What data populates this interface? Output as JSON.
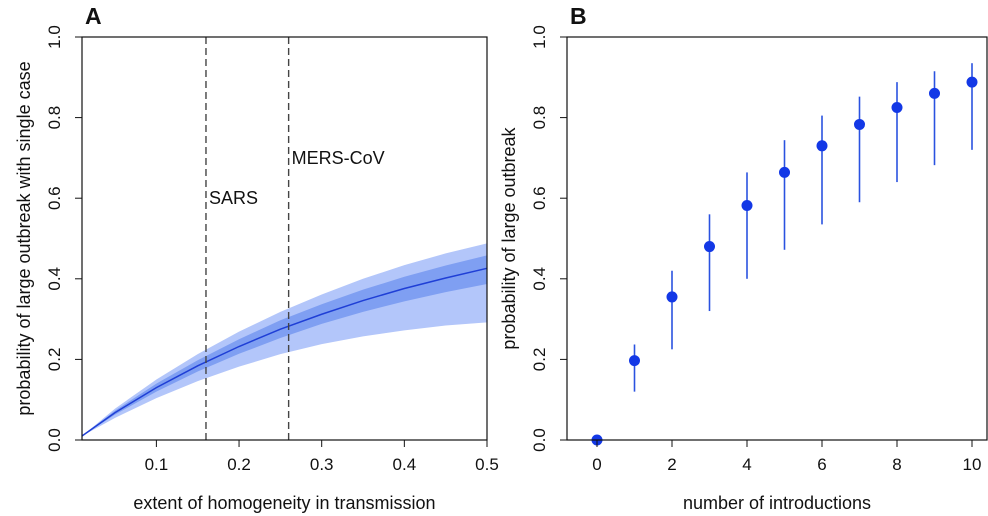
{
  "chart_data": [
    {
      "type": "line",
      "panel_label": "A",
      "xlabel": "extent of homogeneity in transmission",
      "ylabel": "probability of large outbreak with single case",
      "xlim": [
        0.01,
        0.5
      ],
      "ylim": [
        0,
        1
      ],
      "xticks": [
        "0.1",
        "0.2",
        "0.3",
        "0.4",
        "0.5"
      ],
      "xtick_values": [
        0.1,
        0.2,
        0.3,
        0.4,
        0.5
      ],
      "yticks": [
        "0.0",
        "0.2",
        "0.4",
        "0.6",
        "0.8",
        "1.0"
      ],
      "ytick_values": [
        0,
        0.2,
        0.4,
        0.6,
        0.8,
        1.0
      ],
      "grid": false,
      "x": [
        0.01,
        0.05,
        0.1,
        0.15,
        0.2,
        0.25,
        0.3,
        0.35,
        0.4,
        0.45,
        0.5
      ],
      "median": [
        0.01,
        0.068,
        0.13,
        0.184,
        0.232,
        0.275,
        0.312,
        0.346,
        0.376,
        0.402,
        0.426
      ],
      "inner_band_low": [
        0.01,
        0.063,
        0.12,
        0.17,
        0.214,
        0.253,
        0.288,
        0.318,
        0.344,
        0.367,
        0.387
      ],
      "inner_band_high": [
        0.01,
        0.073,
        0.14,
        0.198,
        0.25,
        0.297,
        0.337,
        0.373,
        0.405,
        0.433,
        0.458
      ],
      "outer_band_low": [
        0.01,
        0.055,
        0.104,
        0.146,
        0.182,
        0.213,
        0.238,
        0.257,
        0.272,
        0.284,
        0.292
      ],
      "outer_band_high": [
        0.01,
        0.078,
        0.15,
        0.213,
        0.269,
        0.318,
        0.361,
        0.4,
        0.434,
        0.463,
        0.488
      ],
      "reference_lines": [
        {
          "x": 0.16,
          "label": "SARS",
          "label_y": 0.6
        },
        {
          "x": 0.26,
          "label": "MERS-CoV",
          "label_y": 0.7
        }
      ],
      "colors": {
        "line": "#1f3fd6",
        "inner_band": "#7f9ff2",
        "outer_band": "#b3c6fa",
        "reference": "#444444"
      }
    },
    {
      "type": "scatter",
      "panel_label": "B",
      "xlabel": "number of introductions",
      "ylabel": "probability of large outbreak",
      "xlim": [
        -0.8,
        10.4
      ],
      "ylim": [
        0,
        1
      ],
      "xticks": [
        "0",
        "2",
        "4",
        "6",
        "8",
        "10"
      ],
      "xtick_values": [
        0,
        2,
        4,
        6,
        8,
        10
      ],
      "yticks": [
        "0.0",
        "0.2",
        "0.4",
        "0.6",
        "0.8",
        "1.0"
      ],
      "ytick_values": [
        0,
        0.2,
        0.4,
        0.6,
        0.8,
        1.0
      ],
      "grid": false,
      "points": [
        {
          "x": 0,
          "y": 0.0,
          "low": 0.0,
          "high": 0.0
        },
        {
          "x": 1,
          "y": 0.197,
          "low": 0.12,
          "high": 0.237
        },
        {
          "x": 2,
          "y": 0.355,
          "low": 0.225,
          "high": 0.42
        },
        {
          "x": 3,
          "y": 0.48,
          "low": 0.32,
          "high": 0.56
        },
        {
          "x": 4,
          "y": 0.582,
          "low": 0.4,
          "high": 0.664
        },
        {
          "x": 5,
          "y": 0.664,
          "low": 0.472,
          "high": 0.744
        },
        {
          "x": 6,
          "y": 0.73,
          "low": 0.535,
          "high": 0.805
        },
        {
          "x": 7,
          "y": 0.783,
          "low": 0.59,
          "high": 0.852
        },
        {
          "x": 8,
          "y": 0.825,
          "low": 0.64,
          "high": 0.888
        },
        {
          "x": 9,
          "y": 0.86,
          "low": 0.682,
          "high": 0.915
        },
        {
          "x": 10,
          "y": 0.888,
          "low": 0.72,
          "high": 0.935
        }
      ],
      "colors": {
        "point": "#1338e6",
        "errorbar": "#2a52e0"
      }
    }
  ]
}
